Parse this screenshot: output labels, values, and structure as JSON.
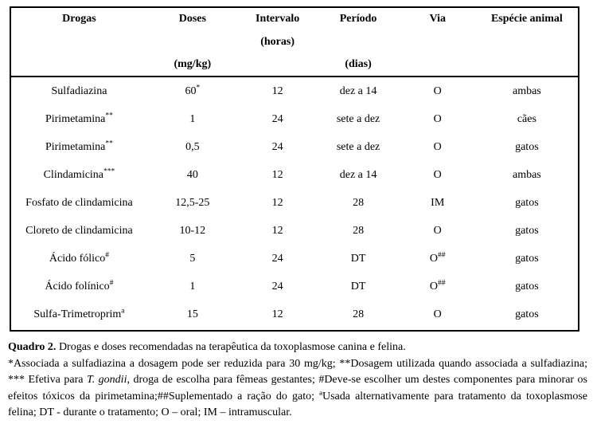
{
  "colors": {
    "text": "#000000",
    "border": "#000000",
    "page_background": "#ffffff"
  },
  "table": {
    "columns": [
      {
        "label": "Drogas",
        "line2": "",
        "line3": ""
      },
      {
        "label": "Doses",
        "line2": "",
        "line3": "(mg/kg)"
      },
      {
        "label": "Intervalo",
        "line2": "(horas)",
        "line3": ""
      },
      {
        "label": "Período",
        "line2": "",
        "line3": "(dias)"
      },
      {
        "label": "Via",
        "line2": "",
        "line3": ""
      },
      {
        "label": "Espécie animal",
        "line2": "",
        "line3": ""
      }
    ],
    "rows": [
      {
        "drug": "Sulfadiazina",
        "drug_sup": "",
        "dose": "60",
        "dose_sup": "*",
        "interval": "12",
        "period": "dez a 14",
        "via": "O",
        "via_sup": "",
        "species": "ambas"
      },
      {
        "drug": "Pirimetamina",
        "drug_sup": "**",
        "dose": "1",
        "dose_sup": "",
        "interval": "24",
        "period": "sete a dez",
        "via": "O",
        "via_sup": "",
        "species": "cães"
      },
      {
        "drug": "Pirimetamina",
        "drug_sup": "**",
        "dose": "0,5",
        "dose_sup": "",
        "interval": "24",
        "period": "sete a dez",
        "via": "O",
        "via_sup": "",
        "species": "gatos"
      },
      {
        "drug": "Clindamicina",
        "drug_sup": "***",
        "dose": "40",
        "dose_sup": "",
        "interval": "12",
        "period": "dez a 14",
        "via": "O",
        "via_sup": "",
        "species": "ambas"
      },
      {
        "drug": "Fosfato de clindamicina",
        "drug_sup": "",
        "dose": "12,5-25",
        "dose_sup": "",
        "interval": "12",
        "period": "28",
        "via": "IM",
        "via_sup": "",
        "species": "gatos"
      },
      {
        "drug": "Cloreto de clindamicina",
        "drug_sup": "",
        "dose": "10-12",
        "dose_sup": "",
        "interval": "12",
        "period": "28",
        "via": "O",
        "via_sup": "",
        "species": "gatos"
      },
      {
        "drug": "Ácido fólico",
        "drug_sup": "#",
        "dose": "5",
        "dose_sup": "",
        "interval": "24",
        "period": "DT",
        "via": "O",
        "via_sup": "##",
        "species": "gatos"
      },
      {
        "drug": "Ácido folínico",
        "drug_sup": "#",
        "dose": "1",
        "dose_sup": "",
        "interval": "24",
        "period": "DT",
        "via": "O",
        "via_sup": "##",
        "species": "gatos"
      },
      {
        "drug": "Sulfa-Trimetroprim",
        "drug_sup": "a",
        "dose": "15",
        "dose_sup": "",
        "interval": "12",
        "period": "28",
        "via": "O",
        "via_sup": "",
        "species": "gatos"
      }
    ]
  },
  "caption": {
    "label": "Quadro 2.",
    "title": " Drogas e doses recomendadas na terapêutica da toxoplasmose canina e felina.",
    "notes_part1": "*Associada a sulfadiazina a dosagem pode ser reduzida para 30 mg/kg; **Dosagem utilizada quando associada a sulfadiazina; *** Efetiva para ",
    "notes_italic": "T. gondii",
    "notes_part2": ", droga de escolha para fêmeas gestantes; #Deve-se escolher um destes componentes para minorar os efeitos tóxicos da pirimetamina;##Suplementado a ração do gato; ªUsada alternativamente para tratamento da toxoplasmose felina; DT - durante o tratamento; O – oral; IM – intramuscular."
  }
}
